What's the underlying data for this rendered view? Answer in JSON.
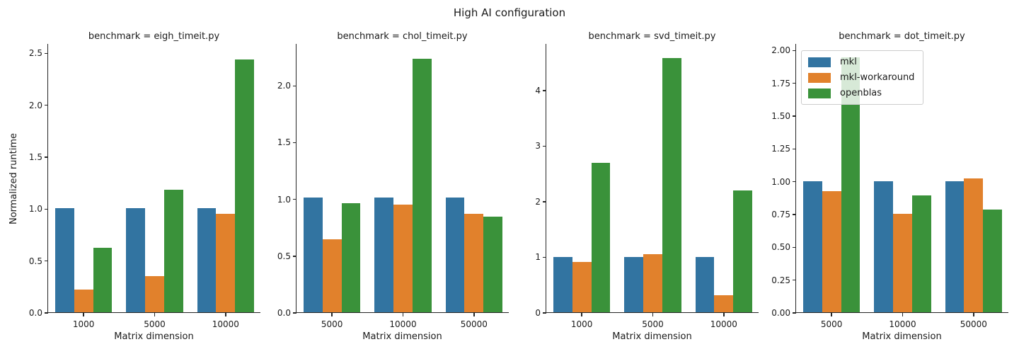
{
  "figure": {
    "suptitle": "High AI configuration",
    "ylabel": "Normalized runtime",
    "xlabel": "Matrix dimension"
  },
  "legend": {
    "position": "upper-left-of-last-facet",
    "items": [
      {
        "label": "mkl",
        "color": "#3274a1"
      },
      {
        "label": "mkl-workaround",
        "color": "#e1812c"
      },
      {
        "label": "openblas",
        "color": "#3a923a"
      }
    ]
  },
  "chart_data": [
    {
      "type": "bar",
      "title": "benchmark = eigh_timeit.py",
      "xlabel": "Matrix dimension",
      "ylabel": "Normalized runtime",
      "categories": [
        "1000",
        "5000",
        "10000"
      ],
      "series": [
        {
          "name": "mkl",
          "values": [
            1.0,
            1.0,
            1.0
          ]
        },
        {
          "name": "mkl-workaround",
          "values": [
            0.22,
            0.35,
            0.95
          ]
        },
        {
          "name": "openblas",
          "values": [
            0.62,
            1.18,
            2.43
          ]
        }
      ],
      "ylim": [
        0,
        2.59
      ],
      "yticks": [
        0.0,
        0.5,
        1.0,
        1.5,
        2.0,
        2.5
      ],
      "ytick_labels": [
        "0.0",
        "0.5",
        "1.0",
        "1.5",
        "2.0",
        "2.5"
      ],
      "grid": false
    },
    {
      "type": "bar",
      "title": "benchmark = chol_timeit.py",
      "xlabel": "Matrix dimension",
      "ylabel": "",
      "categories": [
        "5000",
        "10000",
        "50000"
      ],
      "series": [
        {
          "name": "mkl",
          "values": [
            1.01,
            1.01,
            1.01
          ]
        },
        {
          "name": "mkl-workaround",
          "values": [
            0.64,
            0.95,
            0.87
          ]
        },
        {
          "name": "openblas",
          "values": [
            0.96,
            2.23,
            0.84
          ]
        }
      ],
      "ylim": [
        0,
        2.37
      ],
      "yticks": [
        0.0,
        0.5,
        1.0,
        1.5,
        2.0
      ],
      "ytick_labels": [
        "0.0",
        "0.5",
        "1.0",
        "1.5",
        "2.0"
      ],
      "grid": false
    },
    {
      "type": "bar",
      "title": "benchmark = svd_timeit.py",
      "xlabel": "Matrix dimension",
      "ylabel": "",
      "categories": [
        "1000",
        "5000",
        "10000"
      ],
      "series": [
        {
          "name": "mkl",
          "values": [
            1.0,
            1.0,
            1.0
          ]
        },
        {
          "name": "mkl-workaround",
          "values": [
            0.91,
            1.05,
            0.31
          ]
        },
        {
          "name": "openblas",
          "values": [
            2.69,
            4.57,
            2.19
          ]
        }
      ],
      "ylim": [
        0,
        4.84
      ],
      "yticks": [
        0,
        1,
        2,
        3,
        4
      ],
      "ytick_labels": [
        "0",
        "1",
        "2",
        "3",
        "4"
      ],
      "grid": false
    },
    {
      "type": "bar",
      "title": "benchmark = dot_timeit.py",
      "xlabel": "Matrix dimension",
      "ylabel": "",
      "categories": [
        "5000",
        "10000",
        "50000"
      ],
      "series": [
        {
          "name": "mkl",
          "values": [
            1.0,
            1.0,
            1.0
          ]
        },
        {
          "name": "mkl-workaround",
          "values": [
            0.92,
            0.75,
            1.02
          ]
        },
        {
          "name": "openblas",
          "values": [
            1.94,
            0.89,
            0.78
          ]
        }
      ],
      "ylim": [
        0,
        2.05
      ],
      "yticks": [
        0.0,
        0.25,
        0.5,
        0.75,
        1.0,
        1.25,
        1.5,
        1.75,
        2.0
      ],
      "ytick_labels": [
        "0.00",
        "0.25",
        "0.50",
        "0.75",
        "1.00",
        "1.25",
        "1.50",
        "1.75",
        "2.00"
      ],
      "grid": false
    }
  ]
}
